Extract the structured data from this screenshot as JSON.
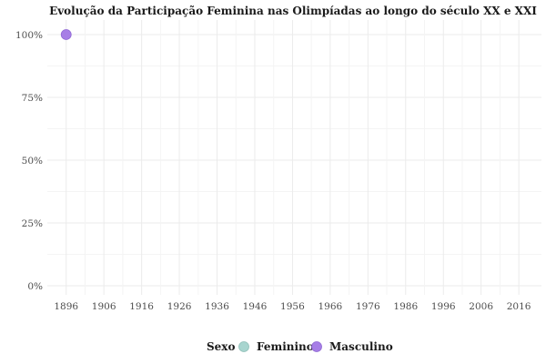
{
  "chart_data": {
    "type": "scatter",
    "title": "Evolução da Participação Feminina nas Olimpíadas ao longo do século XX e XXI",
    "xlabel": "",
    "ylabel": "",
    "x_ticks": [
      "1896",
      "1906",
      "1916",
      "1926",
      "1936",
      "1946",
      "1956",
      "1966",
      "1976",
      "1986",
      "1996",
      "2006",
      "2016"
    ],
    "y_ticks": [
      "0%",
      "25%",
      "50%",
      "75%",
      "100%"
    ],
    "xlim": [
      1891,
      2022
    ],
    "ylim": [
      0,
      1
    ],
    "grid": true,
    "legend": {
      "title": "Sexo",
      "placement": "bottom",
      "entries": [
        {
          "name": "Feminino",
          "color": "#a8d5cf"
        },
        {
          "name": "Masculino",
          "color": "#a77ee6"
        }
      ]
    },
    "series": [
      {
        "name": "Feminino",
        "color": "#a8d5cf",
        "points": []
      },
      {
        "name": "Masculino",
        "color": "#a77ee6",
        "points": [
          {
            "x": 1896,
            "y": 1.0
          }
        ]
      }
    ]
  }
}
